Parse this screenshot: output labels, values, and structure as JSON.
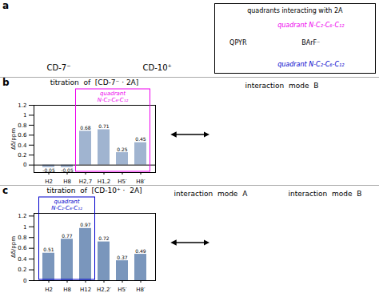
{
  "chart_data": [
    {
      "type": "bar",
      "title": "titration  of  [CD-7⁻ · 2A]",
      "categories": [
        "H2",
        "H8",
        "H2,7",
        "H1,2",
        "H5′",
        "H8′"
      ],
      "values": [
        -0.05,
        -0.05,
        0.68,
        0.71,
        0.25,
        0.45
      ],
      "color": "#a0b4d0",
      "ylabel": "Δδ/ppm",
      "ylim": [
        -0.15,
        1.2
      ],
      "yticks": [
        0,
        0.2,
        0.4,
        0.6,
        0.8,
        1,
        1.2
      ],
      "data_labels": true,
      "annotations": [
        {
          "text": "b"
        },
        {
          "text": "quadrant\nN-C₂-C₆-C₁₂",
          "color": "#ee00ee",
          "categories": [
            "H2,7",
            "H1,2",
            "H5′",
            "H8′"
          ]
        },
        {
          "text": "interaction  mode  B"
        }
      ]
    },
    {
      "type": "bar",
      "title": "titration  of  [CD-10⁺ ·  2A]",
      "categories": [
        "H2",
        "H8",
        "H12",
        "H2,2′",
        "H5′",
        "H8′"
      ],
      "values": [
        0.51,
        0.77,
        0.97,
        0.72,
        0.37,
        0.49
      ],
      "color": "#7a96bc",
      "ylabel": "Δδ/ppm",
      "ylim": [
        0,
        1.25
      ],
      "yticks": [
        0,
        0.2,
        0.4,
        0.6,
        0.8,
        1,
        1.2
      ],
      "data_labels": true,
      "annotations": [
        {
          "text": "c"
        },
        {
          "text": "quadrant\nN-C₂-C₆-C₁₂",
          "color": "#0000cc",
          "categories": [
            "H2",
            "H8",
            "H12"
          ]
        },
        {
          "text": "interaction  mode  A"
        },
        {
          "text": "interaction  mode  B"
        }
      ]
    }
  ],
  "annotations": [
    {
      "text": "a"
    },
    {
      "text": "CD-7⁻"
    },
    {
      "text": "CD-10⁺"
    },
    {
      "text": "quadrants interacting with 2A"
    },
    {
      "text": "quadrant N-C₂-C₆-C₁₂",
      "color": "#ee00ee"
    },
    {
      "text": "quadrant N-C₂-C₆-C₁₂",
      "color": "#0000cc"
    },
    {
      "text": "BArF⁻"
    },
    {
      "text": "QPYR"
    }
  ]
}
